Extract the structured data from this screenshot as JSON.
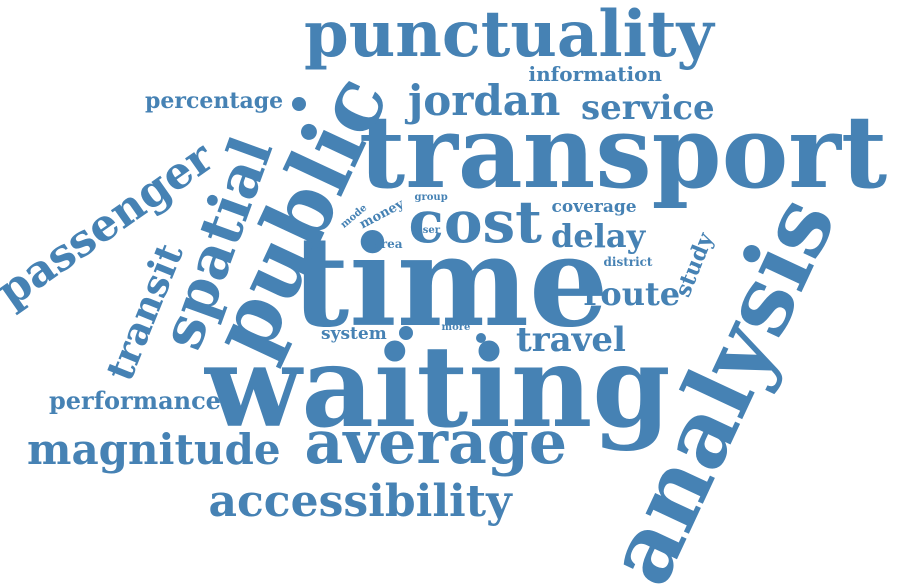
{
  "color": "#4682b4",
  "words": {
    "time": "time",
    "transport": "transport",
    "waiting": "waiting",
    "punctuality": "punctuality",
    "analysis": "analysis",
    "public": "public",
    "cost": "cost",
    "average": "average",
    "spatial": "spatial",
    "accessibility": "accessibility",
    "magnitude": "magnitude",
    "jordan": "jordan",
    "passenger": "passenger",
    "transit": "transit",
    "service": "service",
    "route": "route",
    "travel": "travel",
    "delay": "delay",
    "performance": "performance",
    "percentage": "percentage",
    "information": "information",
    "study": "study",
    "coverage": "coverage",
    "system": "system",
    "money": "money",
    "district": "district",
    "area": "area",
    "mode": "mode",
    "group": "group",
    "user": "user",
    "more": "more"
  }
}
